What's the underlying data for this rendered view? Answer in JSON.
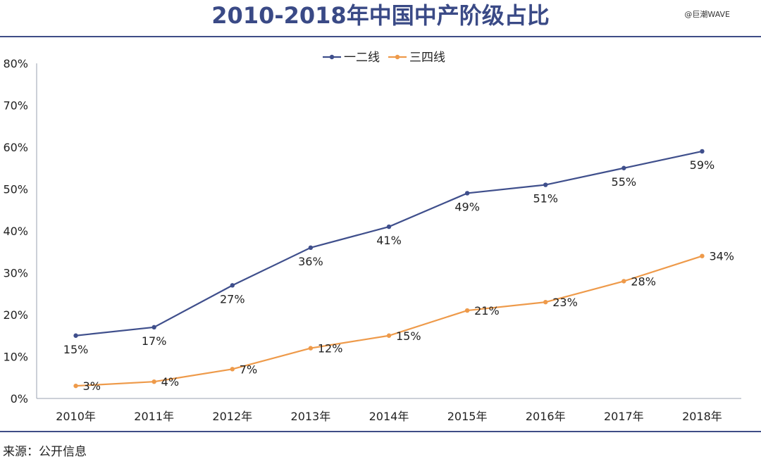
{
  "title": "2010-2018年中国中产阶级占比",
  "watermark": "@巨潮WAVE",
  "source": "来源：公开信息",
  "colors": {
    "series1": "#3f4f8c",
    "series2": "#ee9a4a",
    "axis": "#9aa0b0",
    "rule": "#3e4c86"
  },
  "chart_data": {
    "type": "line",
    "x": [
      "2010年",
      "2011年",
      "2012年",
      "2013年",
      "2014年",
      "2015年",
      "2016年",
      "2017年",
      "2018年"
    ],
    "series": [
      {
        "name": "一二线",
        "values": [
          15,
          17,
          27,
          36,
          41,
          49,
          51,
          55,
          59
        ],
        "labels": [
          "15%",
          "17%",
          "27%",
          "36%",
          "41%",
          "49%",
          "51%",
          "55%",
          "59%"
        ]
      },
      {
        "name": "三四线",
        "values": [
          3,
          4,
          7,
          12,
          15,
          21,
          23,
          28,
          34
        ],
        "labels": [
          "3%",
          "4%",
          "7%",
          "12%",
          "15%",
          "21%",
          "23%",
          "28%",
          "34%"
        ]
      }
    ],
    "yticks": [
      "0%",
      "10%",
      "20%",
      "30%",
      "40%",
      "50%",
      "60%",
      "70%",
      "80%"
    ],
    "ylim": [
      0,
      80
    ],
    "legend": "top-center",
    "grid": false
  }
}
